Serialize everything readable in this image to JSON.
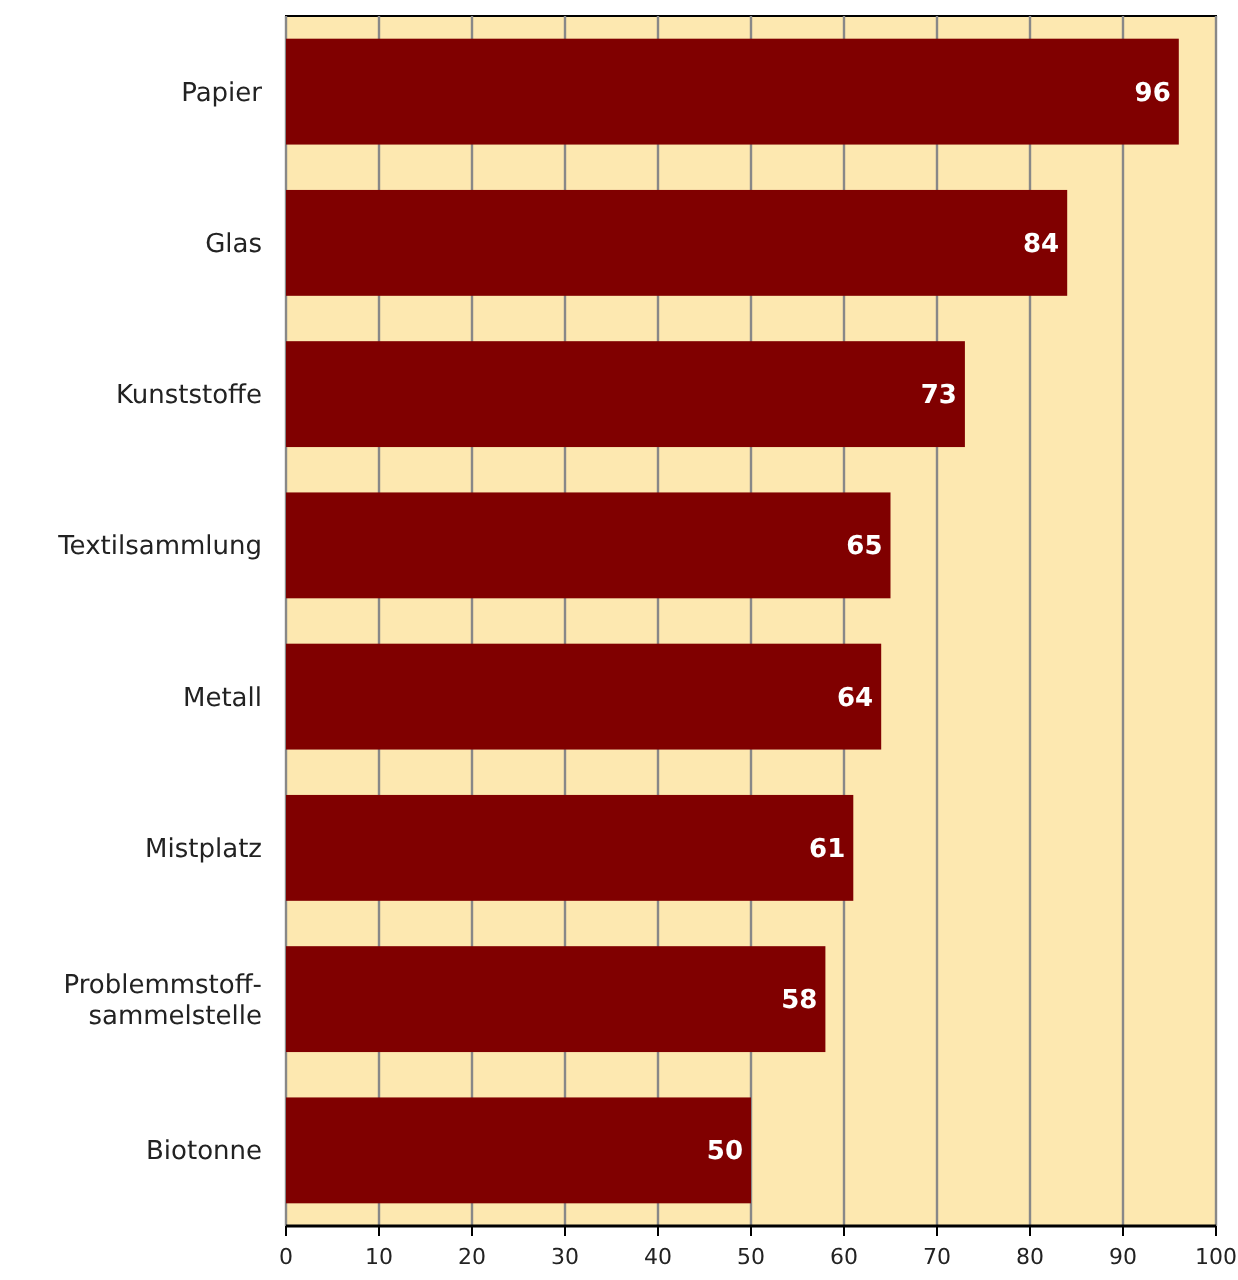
{
  "chart_data": {
    "type": "bar",
    "orientation": "horizontal",
    "categories": [
      "Papier",
      "Glas",
      "Kunststoffe",
      "Textilsammlung",
      "Metall",
      "Mistplatz",
      "Problemmstoff-sammelstelle",
      "Biotonne"
    ],
    "values": [
      96,
      84,
      73,
      65,
      64,
      61,
      58,
      50
    ],
    "color": "#800000",
    "data_labels": true,
    "grid": "x",
    "xlim": [
      0,
      100
    ],
    "xticks": [
      0,
      10,
      20,
      30,
      40,
      50,
      60,
      70,
      80,
      90,
      100
    ]
  }
}
